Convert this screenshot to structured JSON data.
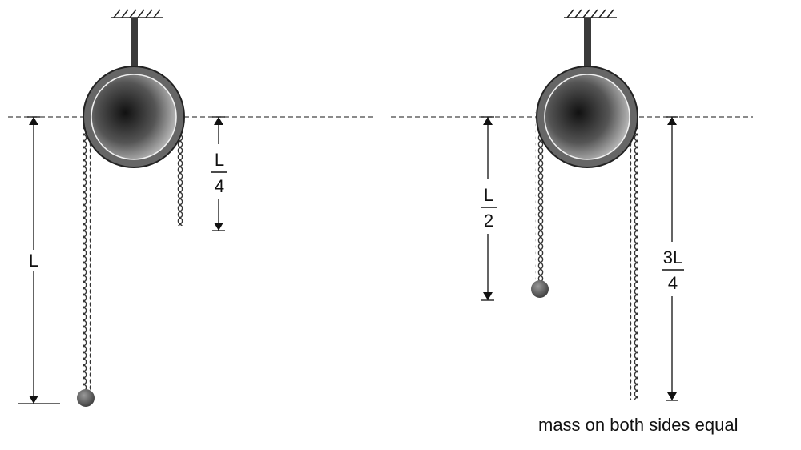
{
  "left_diagram": {
    "label_L": "L",
    "label_L_over_4": {
      "numerator": "L",
      "denominator": "4"
    }
  },
  "right_diagram": {
    "label_L_over_2": {
      "numerator": "L",
      "denominator": "2"
    },
    "label_3L_over_4": {
      "numerator": "3L",
      "denominator": "4"
    },
    "caption": "mass on both sides equal"
  }
}
